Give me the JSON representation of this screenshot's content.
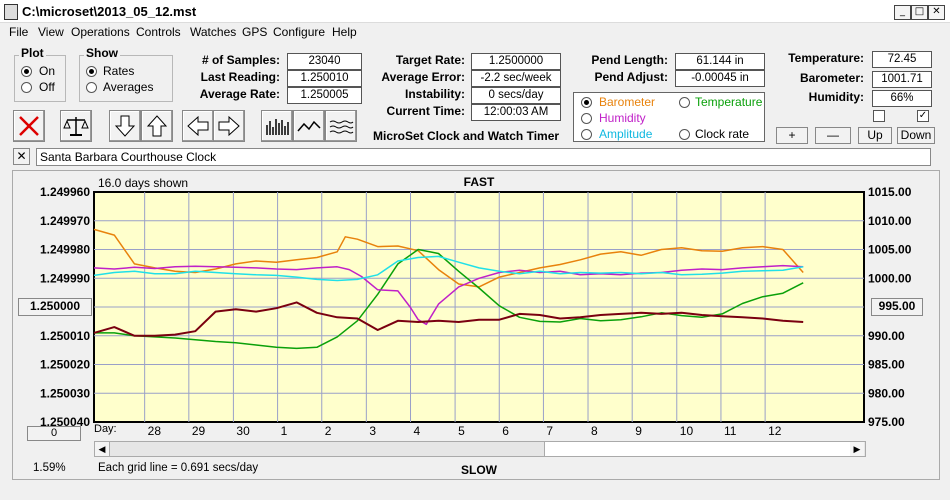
{
  "window": {
    "title": "C:\\microset\\2013_05_12.mst",
    "controls": [
      "_",
      "□",
      "✕"
    ]
  },
  "menu": [
    "File",
    "View",
    "Operations",
    "Controls",
    "Watches",
    "GPS",
    "Configure",
    "Help"
  ],
  "plot_group": {
    "label": "Plot",
    "options": [
      "On",
      "Off"
    ],
    "selected": "On"
  },
  "show_group": {
    "label": "Show",
    "options": [
      "Rates",
      "Averages"
    ],
    "selected": "Rates"
  },
  "stats1": [
    {
      "label": "# of Samples:",
      "value": "23040"
    },
    {
      "label": "Last Reading:",
      "value": "1.250010"
    },
    {
      "label": "Average Rate:",
      "value": "1.250005"
    }
  ],
  "stats2": [
    {
      "label": "Target Rate:",
      "value": "1.2500000"
    },
    {
      "label": "Average Error:",
      "value": "-2.2 sec/week"
    },
    {
      "label": "Instability:",
      "value": "0 secs/day"
    },
    {
      "label": "Current Time:",
      "value": "12:00:03 AM"
    }
  ],
  "app_caption": "MicroSet Clock and Watch Timer",
  "pend": [
    {
      "label": "Pend Length:",
      "value": "61.144 in"
    },
    {
      "label": "Pend Adjust:",
      "value": "-0.00045 in"
    }
  ],
  "series_select": {
    "options": [
      {
        "label": "Barometer",
        "color": "#e8820c",
        "selected": true
      },
      {
        "label": "Temperature",
        "color": "#0aa00a",
        "selected": false
      },
      {
        "label": "Humidity",
        "color": "#c020c8",
        "selected": false
      },
      {
        "label": "Clock rate",
        "color": "#000000",
        "selected": false
      },
      {
        "label": "Amplitude",
        "color": "#10b8e0",
        "selected": false
      }
    ]
  },
  "env": [
    {
      "label": "Temperature:",
      "value": "72.45"
    },
    {
      "label": "Barometer:",
      "value": "1001.71"
    },
    {
      "label": "Humidity:",
      "value": "66%"
    }
  ],
  "env_checks": [
    false,
    true
  ],
  "scale_buttons": [
    "+",
    "—",
    "Up",
    "Down"
  ],
  "watch": {
    "close": "✕",
    "name": "Santa Barbara Courthouse Clock"
  },
  "chart_data": {
    "type": "line",
    "top_label": "FAST",
    "bottom_label": "SLOW",
    "days_shown": "16.0 days shown",
    "grid_note": "Each grid line = 0.691 secs/day",
    "percent": "1.59%",
    "day_label": "Day:",
    "left_button": "1.250000",
    "right_button": "995.00",
    "zero_button": "0",
    "y_left_ticks": [
      "1.249960",
      "1.249970",
      "1.249980",
      "1.249990",
      "1.250000",
      "1.250010",
      "1.250020",
      "1.250030",
      "1.250040"
    ],
    "y_right_ticks": [
      "1015.00",
      "1010.00",
      "1005.00",
      "1000.00",
      "995.00",
      "990.00",
      "985.00",
      "980.00",
      "975.00"
    ],
    "x_ticks": [
      "28",
      "29",
      "30",
      "1",
      "2",
      "3",
      "4",
      "5",
      "6",
      "7",
      "8",
      "9",
      "10",
      "11",
      "12"
    ],
    "x_tick_pos": [
      0.125,
      0.234,
      0.344,
      0.453,
      0.562,
      0.672,
      0.781,
      0.891,
      1.0,
      1.109,
      1.219,
      1.328,
      1.438,
      1.547,
      1.656
    ],
    "ylim_left": [
      1.24996,
      1.25004
    ],
    "ylim_right": [
      975,
      1015
    ],
    "x_range": [
      0,
      1.9
    ],
    "series": [
      {
        "color": "#e8820c",
        "width": 1.5,
        "x": [
          0,
          0.05,
          0.1,
          0.15,
          0.2,
          0.25,
          0.3,
          0.35,
          0.4,
          0.45,
          0.5,
          0.55,
          0.6,
          0.62,
          0.65,
          0.7,
          0.75,
          0.8,
          0.85,
          0.9,
          0.95,
          1.0,
          1.05,
          1.1,
          1.15,
          1.2,
          1.25,
          1.3,
          1.35,
          1.4,
          1.45,
          1.5,
          1.55,
          1.6,
          1.65,
          1.7,
          1.75
        ],
        "y": [
          1008.5,
          1007.5,
          1002.5,
          1001.8,
          1001.2,
          1001.0,
          1001.6,
          1002.5,
          1003.0,
          1002.8,
          1003.2,
          1003.6,
          1004.6,
          1007.2,
          1006.8,
          1005.5,
          1005.6,
          1004.8,
          1001.5,
          999.0,
          998.5,
          1000.2,
          1001.0,
          1001.8,
          1002.4,
          1003.2,
          1004.2,
          1004.6,
          1004.0,
          1005.0,
          1005.3,
          1004.8,
          1004.7,
          1005.3,
          1005.5,
          1005.0,
          1001.0
        ]
      },
      {
        "color": "#0aa00a",
        "width": 1.5,
        "x": [
          0,
          0.05,
          0.1,
          0.15,
          0.2,
          0.25,
          0.3,
          0.35,
          0.4,
          0.45,
          0.5,
          0.55,
          0.6,
          0.65,
          0.7,
          0.75,
          0.8,
          0.85,
          0.9,
          0.95,
          1.0,
          1.05,
          1.1,
          1.15,
          1.2,
          1.25,
          1.3,
          1.35,
          1.4,
          1.45,
          1.5,
          1.55,
          1.6,
          1.65,
          1.7,
          1.75
        ],
        "y": [
          990.5,
          990.5,
          990.0,
          989.8,
          989.6,
          989.3,
          989.0,
          988.8,
          988.4,
          988.0,
          987.8,
          988.0,
          989.8,
          992.6,
          997.2,
          1002.5,
          1005.0,
          1004.3,
          1001.2,
          998.3,
          995.2,
          993.2,
          992.5,
          992.4,
          993.0,
          992.6,
          992.8,
          993.3,
          994.0,
          993.5,
          993.2,
          993.8,
          995.6,
          996.8,
          997.4,
          999.2
        ]
      },
      {
        "color": "#c020c8",
        "width": 1.5,
        "x": [
          0,
          0.05,
          0.1,
          0.15,
          0.2,
          0.25,
          0.3,
          0.35,
          0.4,
          0.45,
          0.5,
          0.55,
          0.6,
          0.63,
          0.66,
          0.7,
          0.75,
          0.78,
          0.8,
          0.82,
          0.85,
          0.9,
          0.95,
          1.0,
          1.05,
          1.1,
          1.15,
          1.2,
          1.25,
          1.3,
          1.35,
          1.4,
          1.45,
          1.5,
          1.55,
          1.6,
          1.65,
          1.7,
          1.75
        ],
        "y": [
          1001.8,
          1001.6,
          1001.9,
          1001.7,
          1002.0,
          1002.1,
          1002.0,
          1001.9,
          1001.8,
          1001.6,
          1001.5,
          1001.8,
          1002.0,
          1001.5,
          1000.3,
          998.0,
          997.8,
          995.0,
          992.8,
          992.0,
          995.5,
          998.5,
          1000.0,
          1001.0,
          1001.4,
          1001.0,
          1001.2,
          1000.6,
          1000.8,
          1000.6,
          1000.9,
          1001.0,
          1001.4,
          1001.6,
          1001.5,
          1001.8,
          1002.0,
          1002.2,
          1002.0
        ]
      },
      {
        "color": "#20e0e8",
        "width": 1.5,
        "x": [
          0,
          0.05,
          0.1,
          0.15,
          0.2,
          0.25,
          0.3,
          0.35,
          0.4,
          0.45,
          0.5,
          0.55,
          0.6,
          0.65,
          0.7,
          0.75,
          0.8,
          0.85,
          0.9,
          0.95,
          1.0,
          1.05,
          1.1,
          1.15,
          1.2,
          1.25,
          1.3,
          1.35,
          1.4,
          1.45,
          1.5,
          1.55,
          1.6,
          1.65,
          1.7,
          1.75
        ],
        "y": [
          1000.5,
          1001.0,
          1001.2,
          1000.8,
          1000.8,
          1001.2,
          1001.0,
          1000.8,
          1000.6,
          1000.5,
          1000.2,
          999.8,
          999.6,
          999.8,
          1000.6,
          1003.0,
          1003.6,
          1003.8,
          1002.8,
          1001.8,
          1001.2,
          1000.8,
          1001.2,
          1000.8,
          1001.0,
          1000.9,
          1001.0,
          1000.8,
          1001.0,
          1000.6,
          1000.7,
          1000.9,
          1001.2,
          1001.3,
          1001.4,
          1002.0
        ]
      },
      {
        "color": "#7a0010",
        "width": 2,
        "x": [
          0,
          0.05,
          0.1,
          0.15,
          0.2,
          0.25,
          0.3,
          0.35,
          0.4,
          0.45,
          0.5,
          0.55,
          0.6,
          0.65,
          0.7,
          0.75,
          0.8,
          0.85,
          0.9,
          0.95,
          1.0,
          1.05,
          1.1,
          1.15,
          1.2,
          1.25,
          1.3,
          1.35,
          1.4,
          1.45,
          1.5,
          1.55,
          1.6,
          1.65,
          1.7,
          1.75
        ],
        "y": [
          990.5,
          991.5,
          990.0,
          990.0,
          990.2,
          990.8,
          994.2,
          994.6,
          994.2,
          994.8,
          995.8,
          994.0,
          993.2,
          993.0,
          991.0,
          992.6,
          992.4,
          992.6,
          992.4,
          992.8,
          992.8,
          993.8,
          993.6,
          993.0,
          993.2,
          993.6,
          993.8,
          994.0,
          993.8,
          994.0,
          993.6,
          993.4,
          993.2,
          993.0,
          992.6,
          992.4
        ]
      }
    ]
  }
}
